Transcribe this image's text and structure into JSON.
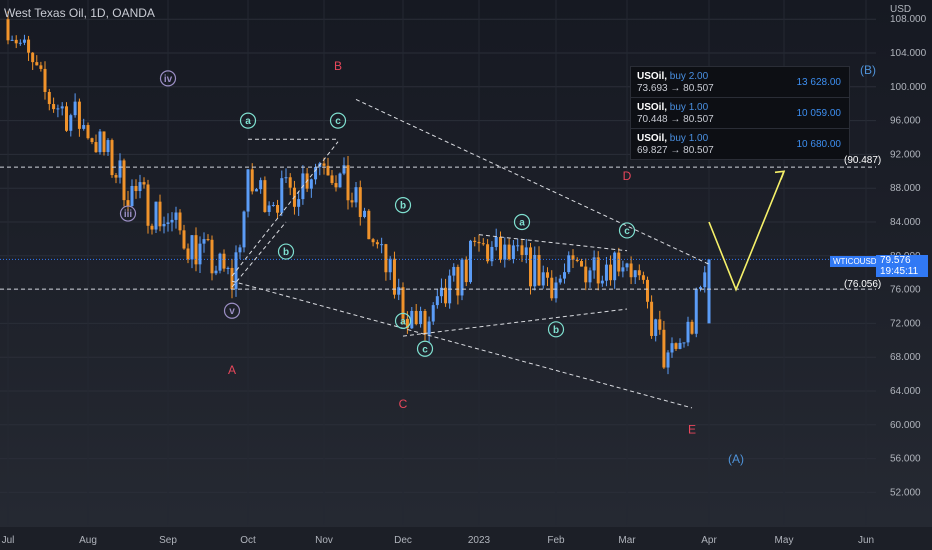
{
  "header": {
    "title": "West Texas Oil, 1D, OANDA",
    "currency": "USD"
  },
  "colors": {
    "up": "#5b9cf6",
    "down": "#f0932b",
    "wave_red": "#e8475b",
    "wave_blue": "#4f93d9",
    "cyan": "#7fe0d0",
    "purple": "#9b8ec4",
    "yellow": "#f5f069"
  },
  "price_tag": {
    "symbol": "WTICOUSD",
    "price": "79.576",
    "countdown": "19:45:11"
  },
  "levels": [
    {
      "label": "(90.487)",
      "value": 90.487
    },
    {
      "label": "(76.056)",
      "value": 76.056
    }
  ],
  "trades": [
    {
      "symbol": "USOil",
      "side": "buy 2.00",
      "route": "73.693 → 80.507",
      "pnl": "13 628.00"
    },
    {
      "symbol": "USOil",
      "side": "buy 1.00",
      "route": "70.448 → 80.507",
      "pnl": "10 059.00"
    },
    {
      "symbol": "USOil",
      "side": "buy 1.00",
      "route": "69.827 → 80.507",
      "pnl": "10 680.00"
    }
  ],
  "chart_data": {
    "type": "candlestick",
    "instrument": "West Texas Oil",
    "timeframe": "1D",
    "ylabel": "USD",
    "ylim": [
      50,
      110
    ],
    "y_ticks": [
      "108.000",
      "104.000",
      "100.000",
      "96.000",
      "92.000",
      "88.000",
      "84.000",
      "80.000",
      "76.000",
      "72.000",
      "68.000",
      "64.000",
      "60.000",
      "56.000",
      "52.000"
    ],
    "x_ticks": [
      "Jul",
      "Aug",
      "Sep",
      "Oct",
      "Nov",
      "Dec",
      "2023",
      "Feb",
      "Mar",
      "Apr",
      "May",
      "Jun"
    ],
    "series": [
      {
        "type": "close_path",
        "points": [
          {
            "x": "Jul",
            "y": 108
          },
          {
            "x": "Jul-mid",
            "y": 99
          },
          {
            "x": "Aug",
            "y": 95
          },
          {
            "x": "Aug-end",
            "y": 88
          },
          {
            "x": "Sep",
            "y": 84
          },
          {
            "x": "Sep-end",
            "y": 77
          },
          {
            "x": "Oct",
            "y": 88
          },
          {
            "x": "Oct-mid",
            "y": 87
          },
          {
            "x": "Nov",
            "y": 92
          },
          {
            "x": "Nov-mid",
            "y": 86
          },
          {
            "x": "Dec",
            "y": 74
          },
          {
            "x": "Dec-mid",
            "y": 71
          },
          {
            "x": "Dec-end",
            "y": 78
          },
          {
            "x": "2023",
            "y": 81
          },
          {
            "x": "Jan-mid",
            "y": 79
          },
          {
            "x": "Feb",
            "y": 77
          },
          {
            "x": "Feb-mid",
            "y": 79
          },
          {
            "x": "Mar",
            "y": 80
          },
          {
            "x": "Mar-mid",
            "y": 67
          },
          {
            "x": "Mar-end",
            "y": 72
          },
          {
            "x": "Apr",
            "y": 79.576
          }
        ]
      }
    ],
    "wave_labels": [
      {
        "text": "B",
        "x": "Oct-end",
        "y": 102
      },
      {
        "text": "D",
        "x": "Mar",
        "y": 89
      },
      {
        "text": "A",
        "x": "Sep-end",
        "y": 66
      },
      {
        "text": "C",
        "x": "Dec",
        "y": 62
      },
      {
        "text": "E",
        "x": "Mar-end",
        "y": 59
      },
      {
        "text": "(A)",
        "x": "Apr-mid",
        "y": 55.5
      },
      {
        "text": "(B)",
        "x": "Jun-early",
        "y": 101.5
      }
    ],
    "projection": [
      {
        "x": "Apr",
        "y": 84
      },
      {
        "x": "Apr-mid",
        "y": 76
      },
      {
        "x": "May",
        "y": 90
      }
    ],
    "annotations": [
      "iv",
      "iii",
      "v",
      "a",
      "b",
      "c"
    ]
  }
}
